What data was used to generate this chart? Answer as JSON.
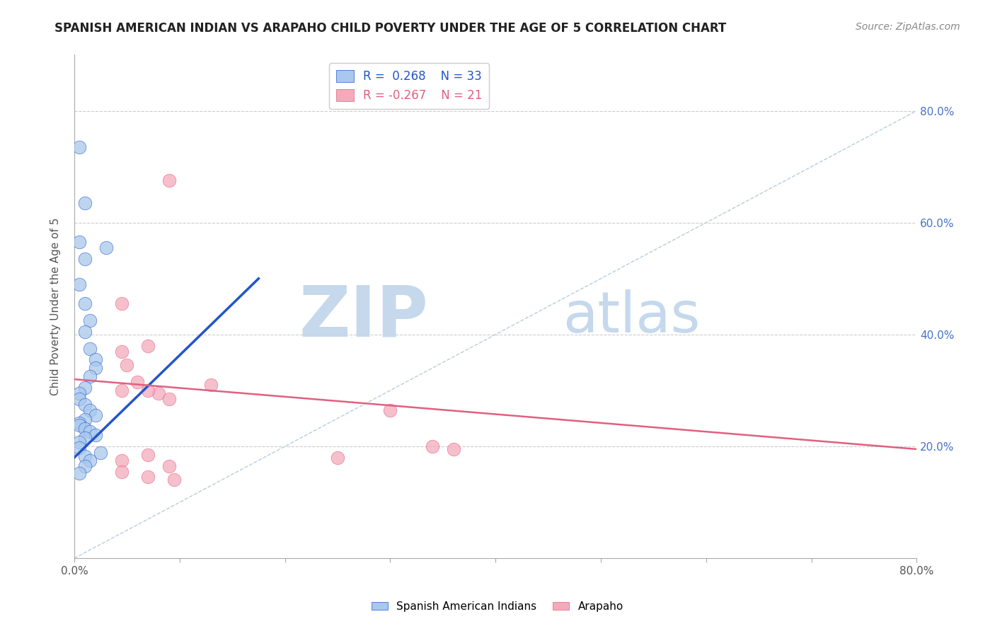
{
  "title": "SPANISH AMERICAN INDIAN VS ARAPAHO CHILD POVERTY UNDER THE AGE OF 5 CORRELATION CHART",
  "source": "Source: ZipAtlas.com",
  "ylabel": "Child Poverty Under the Age of 5",
  "xlim": [
    0.0,
    0.8
  ],
  "ylim": [
    0.0,
    0.9
  ],
  "x_tick_vals": [
    0.0,
    0.1,
    0.2,
    0.3,
    0.4,
    0.5,
    0.6,
    0.7,
    0.8
  ],
  "x_tick_labels_show": {
    "0.0": "0.0%",
    "0.8": "80.0%"
  },
  "y_tick_vals": [
    0.2,
    0.4,
    0.6,
    0.8
  ],
  "y_tick_labels": [
    "20.0%",
    "40.0%",
    "60.0%",
    "80.0%"
  ],
  "blue_R": 0.268,
  "blue_N": 33,
  "pink_R": -0.267,
  "pink_N": 21,
  "blue_color": "#A8C8EC",
  "pink_color": "#F4AABB",
  "blue_line_color": "#2255CC",
  "pink_line_color": "#E06080",
  "watermark_zip": "ZIP",
  "watermark_atlas": "atlas",
  "watermark_color": "#C5D8EC",
  "legend_blue_label": "Spanish American Indians",
  "legend_pink_label": "Arapaho",
  "blue_scatter_x": [
    0.005,
    0.01,
    0.005,
    0.01,
    0.005,
    0.01,
    0.015,
    0.01,
    0.015,
    0.02,
    0.02,
    0.015,
    0.01,
    0.005,
    0.005,
    0.01,
    0.015,
    0.02,
    0.01,
    0.005,
    0.005,
    0.01,
    0.015,
    0.02,
    0.01,
    0.005,
    0.005,
    0.025,
    0.01,
    0.015,
    0.01,
    0.005,
    0.03
  ],
  "blue_scatter_y": [
    0.735,
    0.635,
    0.565,
    0.535,
    0.49,
    0.455,
    0.425,
    0.405,
    0.375,
    0.355,
    0.34,
    0.325,
    0.305,
    0.295,
    0.285,
    0.275,
    0.265,
    0.255,
    0.248,
    0.242,
    0.238,
    0.232,
    0.226,
    0.22,
    0.215,
    0.208,
    0.198,
    0.188,
    0.182,
    0.175,
    0.165,
    0.152,
    0.555
  ],
  "pink_scatter_x": [
    0.09,
    0.045,
    0.07,
    0.045,
    0.05,
    0.06,
    0.045,
    0.08,
    0.07,
    0.09,
    0.3,
    0.34,
    0.36,
    0.07,
    0.045,
    0.09,
    0.13,
    0.25,
    0.045,
    0.07,
    0.095
  ],
  "pink_scatter_y": [
    0.675,
    0.455,
    0.38,
    0.37,
    0.345,
    0.315,
    0.3,
    0.295,
    0.3,
    0.285,
    0.265,
    0.2,
    0.195,
    0.185,
    0.175,
    0.165,
    0.31,
    0.18,
    0.155,
    0.145,
    0.14
  ],
  "blue_line_x": [
    0.0,
    0.175
  ],
  "blue_line_y": [
    0.18,
    0.5
  ],
  "pink_line_x": [
    0.0,
    0.8
  ],
  "pink_line_y": [
    0.32,
    0.195
  ],
  "diag_line_x": [
    0.0,
    0.8
  ],
  "diag_line_y": [
    0.0,
    0.8
  ]
}
